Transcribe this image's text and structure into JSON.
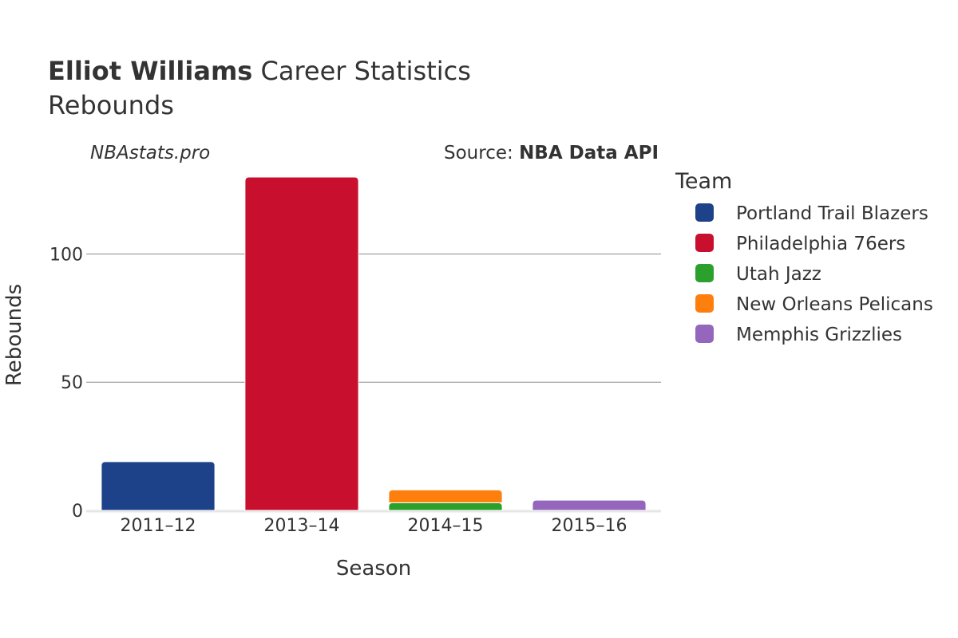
{
  "chart_data": {
    "type": "bar",
    "stacked": true,
    "title_bold": "Elliot Williams",
    "title_rest": " Career Statistics",
    "subtitle": "Rebounds",
    "watermark": "NBAstats.pro",
    "source_label": "Source: ",
    "source_value": "NBA Data API",
    "xlabel": "Season",
    "ylabel": "Rebounds",
    "ylim": [
      0,
      130
    ],
    "yticks": [
      0,
      50,
      100
    ],
    "grid": true,
    "legend_title": "Team",
    "legend_position": "right",
    "categories": [
      "2011–12",
      "2013–14",
      "2014–15",
      "2015–16"
    ],
    "series": [
      {
        "name": "Portland Trail Blazers",
        "color": "#1d428a",
        "values": [
          19,
          0,
          0,
          0
        ]
      },
      {
        "name": "Philadelphia 76ers",
        "color": "#c8102e",
        "values": [
          0,
          130,
          0,
          0
        ]
      },
      {
        "name": "Utah Jazz",
        "color": "#2ca02c",
        "values": [
          0,
          0,
          3,
          0
        ]
      },
      {
        "name": "New Orleans Pelicans",
        "color": "#ff7f0e",
        "values": [
          0,
          0,
          5,
          0
        ]
      },
      {
        "name": "Memphis Grizzlies",
        "color": "#9467bd",
        "values": [
          0,
          0,
          0,
          4
        ]
      }
    ]
  }
}
